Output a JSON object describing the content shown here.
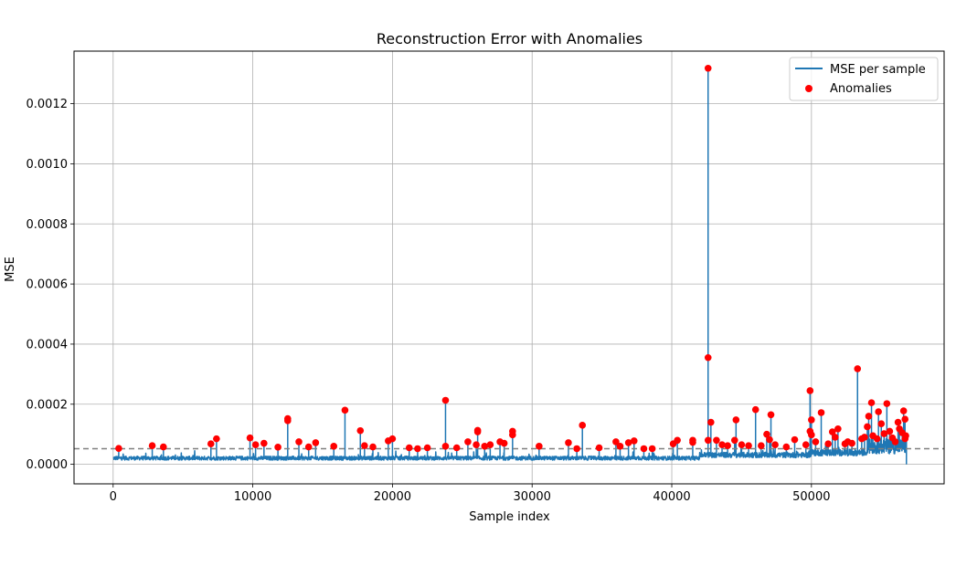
{
  "chart_data": {
    "type": "line",
    "title": "Reconstruction Error with Anomalies",
    "xlabel": "Sample index",
    "ylabel": "MSE",
    "xlim": [
      -2800,
      59500
    ],
    "ylim": [
      -6.5e-05,
      0.001375
    ],
    "xticks": [
      0,
      10000,
      20000,
      30000,
      40000,
      50000
    ],
    "xtick_labels": [
      "0",
      "10000",
      "20000",
      "30000",
      "40000",
      "50000"
    ],
    "yticks": [
      0.0,
      0.0002,
      0.0004,
      0.0006,
      0.0008,
      0.001,
      0.0012
    ],
    "ytick_labels": [
      "0.0000",
      "0.0002",
      "0.0004",
      "0.0006",
      "0.0008",
      "0.0010",
      "0.0012"
    ],
    "grid": true,
    "legend_position": "top-right",
    "threshold": 5.2e-05,
    "n_samples": 56800,
    "colors": {
      "line": "#1f77b4",
      "anomaly": "#ff0000",
      "threshold": "#808080"
    },
    "series": [
      {
        "name": "MSE per sample",
        "kind": "line"
      },
      {
        "name": "Anomalies",
        "kind": "scatter"
      }
    ],
    "anomalies": [
      [
        400,
        5.3e-05
      ],
      [
        2800,
        6.2e-05
      ],
      [
        3600,
        5.8e-05
      ],
      [
        7000,
        6.8e-05
      ],
      [
        7400,
        8.5e-05
      ],
      [
        9800,
        8.8e-05
      ],
      [
        10200,
        6.5e-05
      ],
      [
        10800,
        7e-05
      ],
      [
        11800,
        5.7e-05
      ],
      [
        12500,
        0.000152
      ],
      [
        12500,
        0.000145
      ],
      [
        13300,
        7.5e-05
      ],
      [
        14000,
        5.8e-05
      ],
      [
        14500,
        7.2e-05
      ],
      [
        15800,
        6e-05
      ],
      [
        16600,
        0.00018
      ],
      [
        17700,
        0.000112
      ],
      [
        18000,
        6.2e-05
      ],
      [
        18600,
        5.8e-05
      ],
      [
        19700,
        7.8e-05
      ],
      [
        20000,
        8.5e-05
      ],
      [
        21200,
        5.5e-05
      ],
      [
        21800,
        5.2e-05
      ],
      [
        22500,
        5.5e-05
      ],
      [
        23800,
        0.000213
      ],
      [
        23800,
        6e-05
      ],
      [
        24600,
        5.5e-05
      ],
      [
        25400,
        7.5e-05
      ],
      [
        26000,
        6.5e-05
      ],
      [
        26100,
        0.000113
      ],
      [
        26100,
        0.000108
      ],
      [
        26600,
        6e-05
      ],
      [
        27000,
        6.5e-05
      ],
      [
        27700,
        7.5e-05
      ],
      [
        28000,
        7e-05
      ],
      [
        28600,
        0.00011
      ],
      [
        28600,
        9.8e-05
      ],
      [
        30500,
        6e-05
      ],
      [
        32600,
        7.2e-05
      ],
      [
        33200,
        5.2e-05
      ],
      [
        33600,
        0.00013
      ],
      [
        34800,
        5.5e-05
      ],
      [
        36000,
        7.5e-05
      ],
      [
        36300,
        6e-05
      ],
      [
        36900,
        7.2e-05
      ],
      [
        37300,
        7.8e-05
      ],
      [
        38000,
        5.2e-05
      ],
      [
        38600,
        5.2e-05
      ],
      [
        40100,
        6.8e-05
      ],
      [
        40400,
        8e-05
      ],
      [
        41500,
        8e-05
      ],
      [
        41500,
        7.3e-05
      ],
      [
        42600,
        0.001318
      ],
      [
        42600,
        0.000355
      ],
      [
        42600,
        8e-05
      ],
      [
        42800,
        0.00014
      ],
      [
        43200,
        8e-05
      ],
      [
        43600,
        6.5e-05
      ],
      [
        44000,
        6.2e-05
      ],
      [
        44500,
        8e-05
      ],
      [
        44600,
        0.000148
      ],
      [
        45000,
        6.5e-05
      ],
      [
        45500,
        6.2e-05
      ],
      [
        46000,
        0.000182
      ],
      [
        46400,
        6.2e-05
      ],
      [
        46800,
        0.0001
      ],
      [
        47000,
        8.2e-05
      ],
      [
        47100,
        0.000165
      ],
      [
        47400,
        6.5e-05
      ],
      [
        48200,
        5.8e-05
      ],
      [
        48800,
        8.2e-05
      ],
      [
        49600,
        6.5e-05
      ],
      [
        49900,
        0.000245
      ],
      [
        49900,
        0.00011
      ],
      [
        50000,
        0.000148
      ],
      [
        50000,
        9.8e-05
      ],
      [
        50300,
        7.5e-05
      ],
      [
        50700,
        0.000172
      ],
      [
        51200,
        6.8e-05
      ],
      [
        51500,
        0.000108
      ],
      [
        51700,
        9e-05
      ],
      [
        51900,
        0.000118
      ],
      [
        52400,
        6.8e-05
      ],
      [
        52600,
        7.5e-05
      ],
      [
        52900,
        7e-05
      ],
      [
        53300,
        0.000318
      ],
      [
        53600,
        8.5e-05
      ],
      [
        53800,
        9e-05
      ],
      [
        54000,
        0.000125
      ],
      [
        54100,
        0.00016
      ],
      [
        54300,
        0.000205
      ],
      [
        54400,
        9.5e-05
      ],
      [
        54700,
        8.5e-05
      ],
      [
        54800,
        0.000175
      ],
      [
        55000,
        0.000135
      ],
      [
        55200,
        0.000102
      ],
      [
        55400,
        0.000202
      ],
      [
        55600,
        0.00011
      ],
      [
        55800,
        8.8e-05
      ],
      [
        56000,
        7.5e-05
      ],
      [
        56200,
        0.00014
      ],
      [
        56300,
        0.000118
      ],
      [
        56500,
        0.000105
      ],
      [
        56600,
        0.000178
      ],
      [
        56700,
        0.00015
      ],
      [
        56700,
        8.5e-05
      ],
      [
        56750,
        9.5e-05
      ]
    ]
  }
}
